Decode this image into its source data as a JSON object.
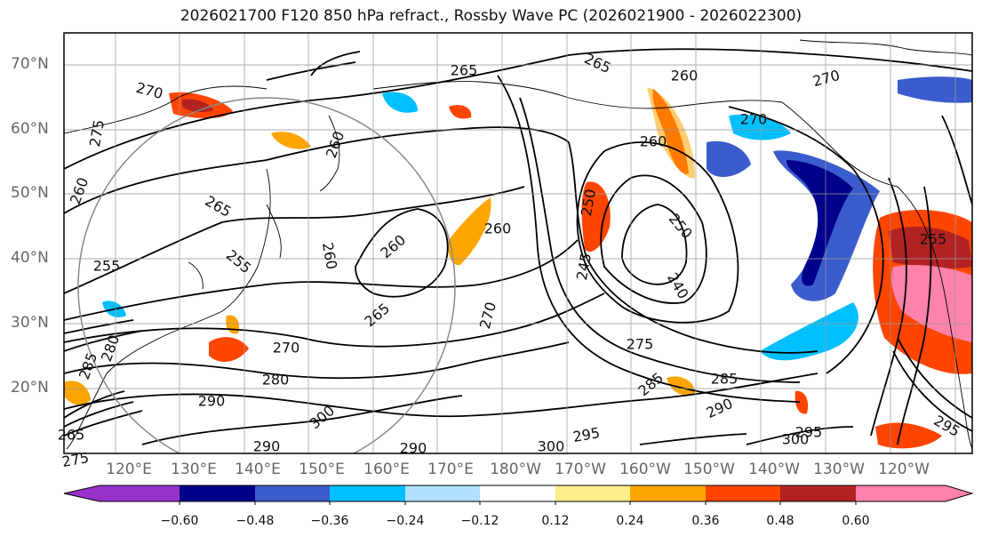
{
  "title": "2026021700 F120 850 hPa refract., Rossby Wave PC (2026021900 - 2026022300)",
  "lat_labels": [
    "70°N",
    "60°N",
    "50°N",
    "40°N",
    "30°N",
    "20°N"
  ],
  "lon_labels": [
    "120°E",
    "130°E",
    "140°E",
    "150°E",
    "160°E",
    "170°E",
    "180°W",
    "170°W",
    "160°W",
    "150°W",
    "140°W",
    "130°W",
    "120°W"
  ],
  "colorbar": {
    "ticks": [
      "−0.60",
      "−0.48",
      "−0.36",
      "−0.24",
      "−0.12",
      "0.12",
      "0.24",
      "0.36",
      "0.48",
      "0.60"
    ],
    "colors": [
      "#9932cc",
      "#00008b",
      "#3a5ccc",
      "#00bfff",
      "#b0e2ff",
      "#ffffff",
      "#ffec8b",
      "#ffa500",
      "#ff4500",
      "#b22222",
      "#ff82ab"
    ]
  },
  "contour_labels": [
    "265",
    "265",
    "260",
    "270",
    "270",
    "275",
    "260",
    "260",
    "260",
    "260",
    "260",
    "265",
    "255",
    "250",
    "240",
    "245",
    "270",
    "265",
    "270",
    "255",
    "260",
    "250",
    "255",
    "270",
    "280",
    "275",
    "285",
    "285",
    "290",
    "290",
    "300",
    "300",
    "295",
    "290",
    "295",
    "300",
    "285",
    "280",
    "275",
    "265",
    "290",
    "295"
  ]
}
